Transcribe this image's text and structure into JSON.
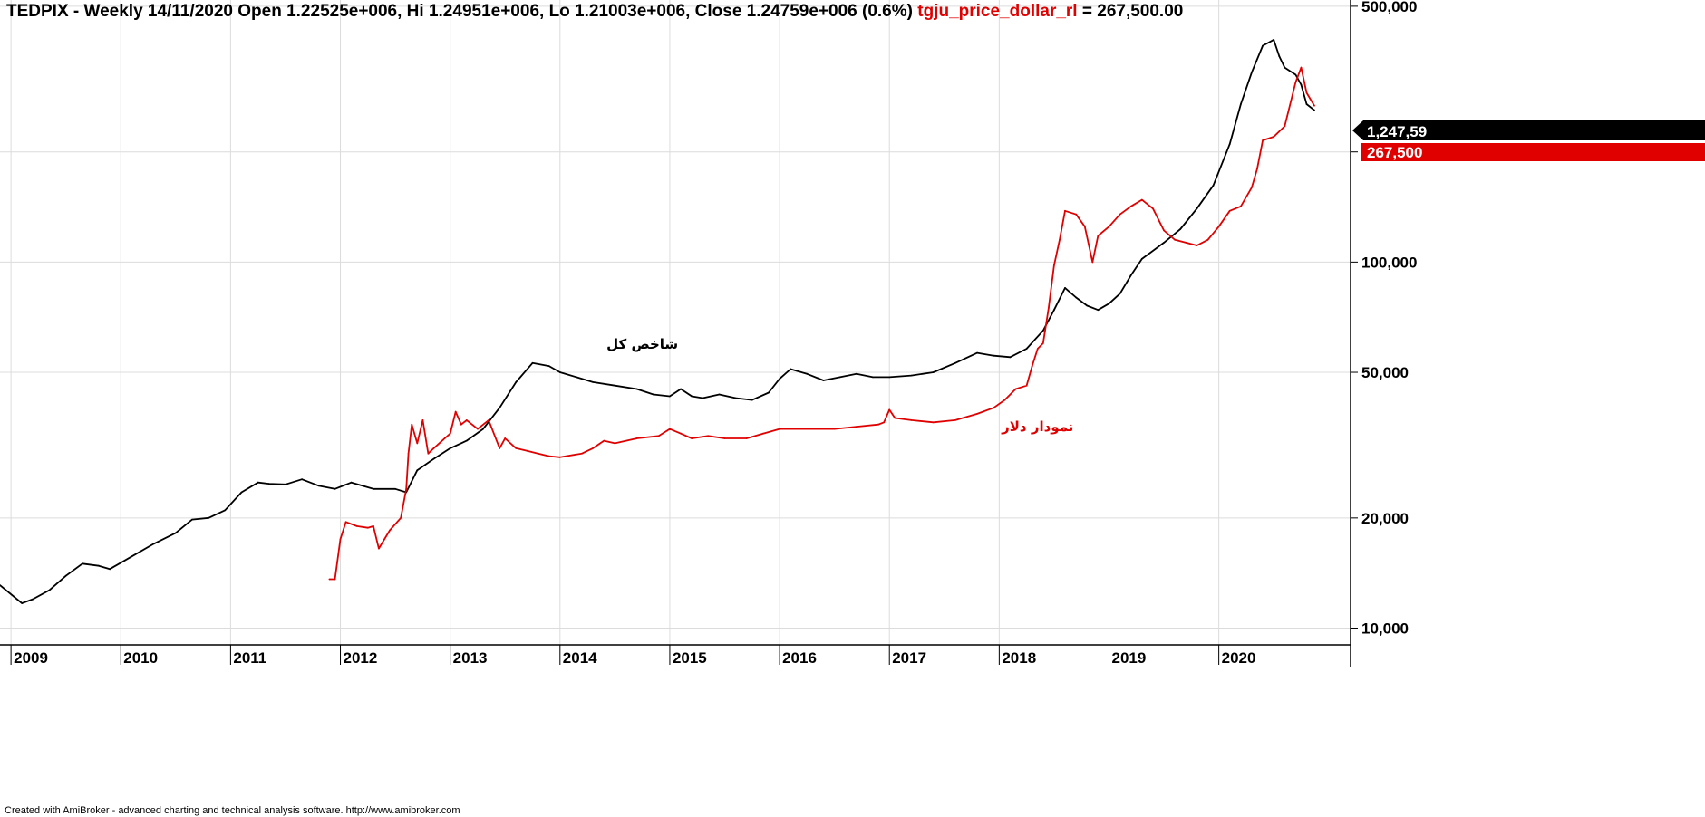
{
  "header": {
    "main": "TEDPIX - Weekly 14/11/2020 Open 1.22525e+006, Hi 1.24951e+006, Lo 1.21003e+006, Close 1.24759e+006 (0.6%)",
    "overlay_name": "tgju_price_dollar_rl",
    "overlay_value": "= 267,500.00"
  },
  "footer": "Created with AmiBroker - advanced charting and technical analysis software. http://www.amibroker.com",
  "colors": {
    "tedpix": "#000000",
    "dollar": "#e00000",
    "grid": "#dcdcdc",
    "axis": "#000000"
  },
  "chart_data": {
    "type": "line",
    "scale": "log",
    "ylim": [
      9000,
      520000
    ],
    "xlim": [
      2008.9,
      2021.2
    ],
    "y_ticks": [
      10000,
      20000,
      50000,
      100000,
      200000,
      500000
    ],
    "y_tick_labels": [
      "10,000",
      "20,000",
      "50,000",
      "100,000",
      "200,000",
      "500,000"
    ],
    "x_ticks": [
      2009,
      2010,
      2011,
      2012,
      2013,
      2014,
      2015,
      2016,
      2017,
      2018,
      2019,
      2020
    ],
    "x_tick_labels": [
      "2009",
      "2010",
      "2011",
      "2012",
      "2013",
      "2014",
      "2015",
      "2016",
      "2017",
      "2018",
      "2019",
      "2020"
    ],
    "annotations": [
      {
        "text": "شاخص کل",
        "x": 2014.75,
        "y": 58000,
        "color": "#000000"
      },
      {
        "text": "نمودار دلار",
        "x": 2018.35,
        "y": 34500,
        "color": "#e00000"
      }
    ],
    "last_value_labels": [
      {
        "text": "1,247,59",
        "y": 1247590,
        "color": "#000000"
      },
      {
        "text": "267,500",
        "y": 267500,
        "color": "#e00000"
      }
    ],
    "series": [
      {
        "name": "TEDPIX",
        "x": [
          2008.9,
          2009.1,
          2009.2,
          2009.35,
          2009.5,
          2009.65,
          2009.8,
          2009.9,
          2010.1,
          2010.3,
          2010.5,
          2010.65,
          2010.8,
          2010.95,
          2011.1,
          2011.25,
          2011.35,
          2011.5,
          2011.65,
          2011.8,
          2011.95,
          2012.1,
          2012.3,
          2012.5,
          2012.6,
          2012.7,
          2012.85,
          2013.0,
          2013.15,
          2013.3,
          2013.45,
          2013.6,
          2013.75,
          2013.9,
          2014.0,
          2014.15,
          2014.3,
          2014.5,
          2014.7,
          2014.85,
          2015.0,
          2015.1,
          2015.2,
          2015.3,
          2015.45,
          2015.6,
          2015.75,
          2015.9,
          2016.0,
          2016.1,
          2016.25,
          2016.4,
          2016.55,
          2016.7,
          2016.85,
          2017.0,
          2017.2,
          2017.4,
          2017.6,
          2017.8,
          2017.95,
          2018.1,
          2018.25,
          2018.4,
          2018.5,
          2018.6,
          2018.7,
          2018.8,
          2018.9,
          2019.0,
          2019.1,
          2019.2,
          2019.3,
          2019.5,
          2019.65,
          2019.8,
          2019.95,
          2020.1,
          2020.2,
          2020.3,
          2020.4,
          2020.5,
          2020.55,
          2020.6,
          2020.7,
          2020.75,
          2020.8,
          2020.87
        ],
        "values": [
          13100,
          11700,
          12000,
          12700,
          13900,
          15000,
          14800,
          14500,
          15700,
          17000,
          18200,
          19800,
          20000,
          21000,
          23500,
          25000,
          24800,
          24700,
          25500,
          24500,
          24000,
          25000,
          24000,
          24000,
          23500,
          27000,
          29000,
          31000,
          32500,
          35000,
          40000,
          47000,
          53000,
          52000,
          50000,
          48500,
          47000,
          46000,
          45000,
          43500,
          43000,
          45000,
          43000,
          42500,
          43500,
          42500,
          42000,
          44000,
          48000,
          51000,
          49500,
          47500,
          48500,
          49500,
          48500,
          48500,
          49000,
          50000,
          53000,
          56500,
          55500,
          55000,
          58000,
          65000,
          74000,
          85000,
          80000,
          76000,
          74000,
          77000,
          82000,
          92000,
          102000,
          113000,
          123000,
          140000,
          162000,
          210000,
          270000,
          330000,
          390000,
          405000,
          365000,
          340000,
          325000,
          305000,
          270000,
          260000
        ]
      },
      {
        "name": "tgju_price_dollar_rl",
        "x": [
          2011.9,
          2011.95,
          2012.0,
          2012.05,
          2012.15,
          2012.25,
          2012.3,
          2012.35,
          2012.45,
          2012.55,
          2012.6,
          2012.62,
          2012.65,
          2012.7,
          2012.75,
          2012.8,
          2012.85,
          2012.9,
          2012.95,
          2013.0,
          2013.05,
          2013.1,
          2013.15,
          2013.25,
          2013.35,
          2013.45,
          2013.5,
          2013.6,
          2013.7,
          2013.8,
          2013.9,
          2014.0,
          2014.2,
          2014.3,
          2014.4,
          2014.5,
          2014.7,
          2014.9,
          2015.0,
          2015.1,
          2015.2,
          2015.35,
          2015.5,
          2015.7,
          2015.85,
          2016.0,
          2016.2,
          2016.5,
          2016.7,
          2016.9,
          2016.95,
          2017.0,
          2017.05,
          2017.2,
          2017.4,
          2017.6,
          2017.8,
          2017.95,
          2018.05,
          2018.15,
          2018.25,
          2018.3,
          2018.35,
          2018.4,
          2018.45,
          2018.5,
          2018.55,
          2018.6,
          2018.7,
          2018.78,
          2018.85,
          2018.9,
          2019.0,
          2019.1,
          2019.2,
          2019.3,
          2019.4,
          2019.5,
          2019.6,
          2019.7,
          2019.8,
          2019.9,
          2020.0,
          2020.1,
          2020.2,
          2020.3,
          2020.35,
          2020.4,
          2020.5,
          2020.6,
          2020.7,
          2020.75,
          2020.8,
          2020.87
        ],
        "values": [
          13600,
          13600,
          17500,
          19500,
          19000,
          18800,
          19000,
          16500,
          18500,
          20000,
          24000,
          30000,
          36000,
          32000,
          37000,
          30000,
          31000,
          32000,
          33000,
          34000,
          39000,
          36000,
          37000,
          35000,
          37000,
          31000,
          33000,
          31000,
          30500,
          30000,
          29500,
          29300,
          30000,
          31000,
          32500,
          32000,
          33000,
          33500,
          35000,
          34000,
          33000,
          33500,
          33000,
          33000,
          34000,
          35000,
          35000,
          35000,
          35500,
          36000,
          36500,
          39500,
          37500,
          37000,
          36500,
          37000,
          38500,
          40000,
          42000,
          45000,
          46000,
          52000,
          58000,
          60000,
          75000,
          98000,
          115000,
          138000,
          135000,
          125000,
          100000,
          118000,
          125000,
          135000,
          142000,
          148000,
          140000,
          122000,
          115000,
          113000,
          111000,
          115000,
          125000,
          138000,
          142000,
          160000,
          180000,
          215000,
          220000,
          235000,
          310000,
          340000,
          290000,
          267500
        ]
      }
    ]
  }
}
